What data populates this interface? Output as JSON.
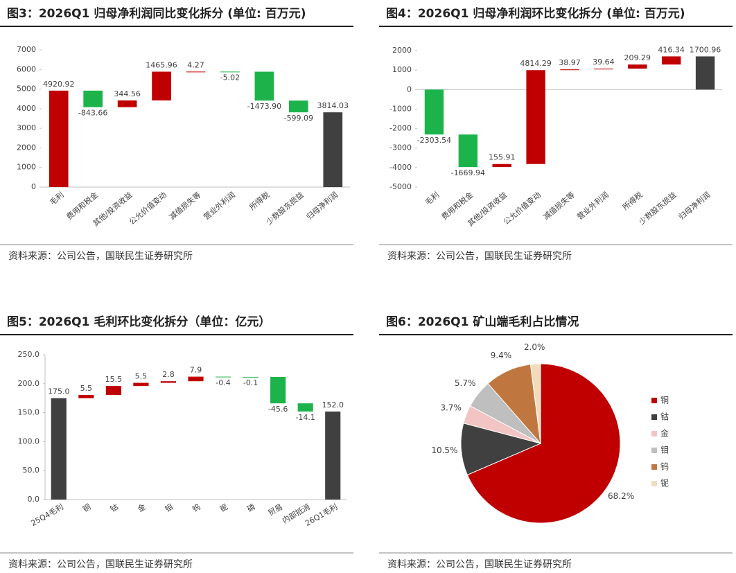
{
  "chart_data": [
    {
      "type": "waterfall",
      "title": "图3：2026Q1 归母净利润同比变化拆分 (单位: 百万元)",
      "source": "资料来源：公司公告，国联民生证券研究所",
      "categories": [
        "毛利",
        "费用和税金",
        "其他/投资收益",
        "公允价值变动",
        "减值损失等",
        "营业外利润",
        "所得税",
        "少数股东损益",
        "归母净利润"
      ],
      "values": [
        4920.92,
        -843.66,
        344.56,
        1465.96,
        4.27,
        -5.02,
        -1473.9,
        -599.09,
        3814.03
      ],
      "value_labels": [
        "4920.92",
        "-843.66",
        "344.56",
        "1465.96",
        "4.27",
        "-5.02",
        "-1473.90",
        "-599.09",
        "3814.03"
      ],
      "colors": [
        "#c00000",
        "#1db34b",
        "#c00000",
        "#c00000",
        "#c00000",
        "#1db34b",
        "#1db34b",
        "#1db34b",
        "#404040"
      ],
      "total_color": "#404040",
      "ylim": [
        0,
        7000
      ],
      "yticks": [
        0,
        1000,
        2000,
        3000,
        4000,
        5000,
        6000,
        7000
      ]
    },
    {
      "type": "waterfall",
      "title": "图4：2026Q1 归母净利润环比变化拆分 (单位: 百万元)",
      "source": "资料来源：公司公告，国联民生证券研究所",
      "categories": [
        "毛利",
        "费用和税金",
        "其他/投资收益",
        "公允价值变动",
        "减值损失等",
        "营业外利润",
        "所得税",
        "少数股东损益",
        "归母净利润"
      ],
      "values": [
        -2303.54,
        -1669.94,
        155.91,
        4814.29,
        38.97,
        39.64,
        209.29,
        416.34,
        1700.96
      ],
      "value_labels": [
        "-2303.54",
        "-1669.94",
        "155.91",
        "4814.29",
        "38.97",
        "39.64",
        "209.29",
        "416.34",
        "1700.96"
      ],
      "colors": [
        "#1db34b",
        "#1db34b",
        "#c00000",
        "#c00000",
        "#c00000",
        "#c00000",
        "#c00000",
        "#c00000",
        "#404040"
      ],
      "total_color": "#404040",
      "ylim": [
        -5000,
        2000
      ],
      "yticks": [
        -5000,
        -4000,
        -3000,
        -2000,
        -1000,
        0,
        1000,
        2000
      ]
    },
    {
      "type": "waterfall",
      "title": "图5：2026Q1 毛利环比变化拆分（单位：亿元）",
      "source": "资料来源：公司公告，国联民生证券研究所",
      "categories": [
        "25Q4毛利",
        "铜",
        "钴",
        "金",
        "钼",
        "钨",
        "铌",
        "磷",
        "贸易",
        "内部抵消",
        "26Q1毛利"
      ],
      "values": [
        175.0,
        5.5,
        15.5,
        5.5,
        2.8,
        7.9,
        -0.4,
        -0.1,
        -45.6,
        -14.1,
        152.0
      ],
      "value_labels": [
        "175.0",
        "5.5",
        "15.5",
        "5.5",
        "2.8",
        "7.9",
        "-0.4",
        "-0.1",
        "-45.6",
        "-14.1",
        "152.0"
      ],
      "colors": [
        "#404040",
        "#c00000",
        "#c00000",
        "#c00000",
        "#c00000",
        "#c00000",
        "#1db34b",
        "#1db34b",
        "#1db34b",
        "#1db34b",
        "#404040"
      ],
      "total_color": "#404040",
      "ylim": [
        0,
        250
      ],
      "yticks": [
        {
          "value": 0,
          "label": "0.0"
        },
        {
          "value": 50,
          "label": "50.0"
        },
        {
          "value": 100,
          "label": "100.0"
        },
        {
          "value": 150,
          "label": "150.0"
        },
        {
          "value": 200,
          "label": "200.0"
        },
        {
          "value": 250,
          "label": "250.0"
        }
      ]
    },
    {
      "type": "pie",
      "title": "图6：2026Q1 矿山端毛利占比情况",
      "source": "资料来源：公司公告，国联民生证券研究所",
      "categories": [
        "铜",
        "钴",
        "金",
        "钼",
        "钨",
        "铌"
      ],
      "values": [
        68.2,
        10.5,
        3.7,
        5.7,
        9.4,
        2.0
      ],
      "value_labels": [
        "68.2%",
        "10.5%",
        "3.7%",
        "5.7%",
        "9.4%",
        "2.0%"
      ],
      "colors": [
        "#c00000",
        "#404040",
        "#f2c4c4",
        "#bfbfbf",
        "#c0773f",
        "#f0dcbd"
      ]
    }
  ]
}
